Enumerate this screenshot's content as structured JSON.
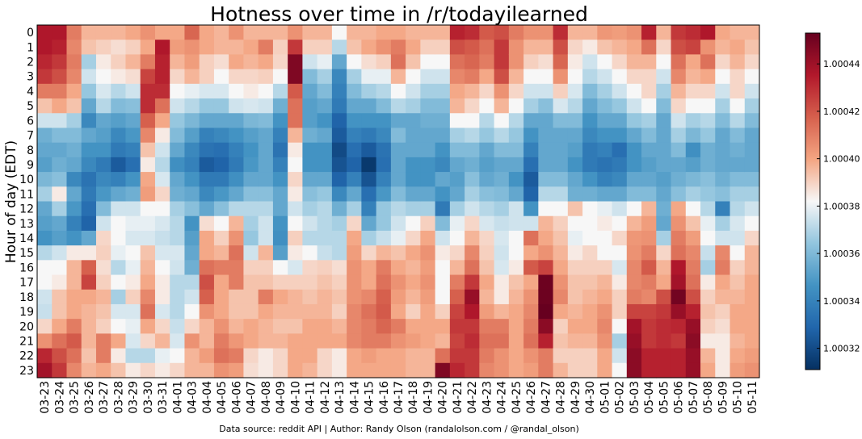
{
  "chart_data": {
    "type": "heatmap",
    "title": "Hotness over time in /r/todayilearned",
    "ylabel": "Hour of day (EDT)",
    "xlabel": "",
    "source_note": "Data source: reddit API | Author: Randy Olson (randalolson.com / @randal_olson)",
    "x_categories": [
      "03-23",
      "03-24",
      "03-25",
      "03-26",
      "03-27",
      "03-28",
      "03-29",
      "03-30",
      "03-31",
      "04-01",
      "04-03",
      "04-04",
      "04-05",
      "04-06",
      "04-07",
      "04-08",
      "04-09",
      "04-10",
      "04-11",
      "04-12",
      "04-13",
      "04-14",
      "04-15",
      "04-16",
      "04-17",
      "04-18",
      "04-19",
      "04-20",
      "04-21",
      "04-22",
      "04-23",
      "04-24",
      "04-25",
      "04-26",
      "04-27",
      "04-28",
      "04-29",
      "04-30",
      "05-01",
      "05-02",
      "05-03",
      "05-04",
      "05-05",
      "05-06",
      "05-07",
      "05-08",
      "05-09",
      "05-10",
      "05-11"
    ],
    "y_categories": [
      "0",
      "1",
      "2",
      "3",
      "4",
      "5",
      "6",
      "7",
      "8",
      "9",
      "10",
      "11",
      "12",
      "13",
      "14",
      "15",
      "16",
      "17",
      "18",
      "19",
      "20",
      "21",
      "22",
      "23"
    ],
    "colorbar": {
      "vmin": 1.000311,
      "vmax": 1.000453,
      "cmap": "RdBu_r",
      "ticks": [
        "1.00032",
        "1.00034",
        "1.00036",
        "1.00038",
        "1.00040",
        "1.00042",
        "1.00044"
      ]
    },
    "colors": {
      "low": "#053061",
      "mid": "#f7f7f7",
      "high": "#67001f"
    },
    "values_norm_note": "each column lists 24 hourly values (hours 0-23), expressed as fractions between colorbar vmin (0) and vmax (1)",
    "columns": [
      [
        0.88,
        0.88,
        0.85,
        0.82,
        0.7,
        0.58,
        0.45,
        0.32,
        0.3,
        0.28,
        0.34,
        0.4,
        0.3,
        0.28,
        0.25,
        0.42,
        0.5,
        0.5,
        0.45,
        0.44,
        0.55,
        0.66,
        0.85,
        0.9
      ],
      [
        0.88,
        0.86,
        0.82,
        0.78,
        0.7,
        0.62,
        0.45,
        0.35,
        0.3,
        0.32,
        0.36,
        0.52,
        0.4,
        0.3,
        0.28,
        0.45,
        0.5,
        0.52,
        0.58,
        0.58,
        0.62,
        0.72,
        0.78,
        0.82
      ],
      [
        0.7,
        0.68,
        0.7,
        0.68,
        0.62,
        0.58,
        0.4,
        0.35,
        0.32,
        0.3,
        0.22,
        0.3,
        0.26,
        0.2,
        0.25,
        0.52,
        0.6,
        0.6,
        0.62,
        0.62,
        0.7,
        0.76,
        0.72,
        0.68
      ],
      [
        0.6,
        0.58,
        0.4,
        0.45,
        0.38,
        0.3,
        0.22,
        0.3,
        0.25,
        0.22,
        0.16,
        0.18,
        0.15,
        0.12,
        0.3,
        0.52,
        0.75,
        0.8,
        0.62,
        0.6,
        0.6,
        0.6,
        0.58,
        0.6
      ],
      [
        0.6,
        0.56,
        0.52,
        0.5,
        0.46,
        0.42,
        0.3,
        0.28,
        0.25,
        0.18,
        0.22,
        0.26,
        0.35,
        0.45,
        0.55,
        0.56,
        0.54,
        0.56,
        0.6,
        0.58,
        0.56,
        0.7,
        0.7,
        0.62
      ],
      [
        0.6,
        0.54,
        0.56,
        0.52,
        0.42,
        0.35,
        0.28,
        0.22,
        0.18,
        0.1,
        0.2,
        0.3,
        0.45,
        0.5,
        0.5,
        0.48,
        0.42,
        0.5,
        0.4,
        0.46,
        0.5,
        0.62,
        0.52,
        0.58
      ],
      [
        0.62,
        0.56,
        0.6,
        0.54,
        0.45,
        0.36,
        0.3,
        0.26,
        0.2,
        0.15,
        0.25,
        0.32,
        0.45,
        0.48,
        0.46,
        0.5,
        0.48,
        0.52,
        0.56,
        0.46,
        0.48,
        0.46,
        0.42,
        0.52
      ],
      [
        0.66,
        0.62,
        0.7,
        0.8,
        0.84,
        0.84,
        0.75,
        0.68,
        0.58,
        0.52,
        0.62,
        0.64,
        0.5,
        0.48,
        0.46,
        0.58,
        0.6,
        0.62,
        0.68,
        0.72,
        0.62,
        0.55,
        0.42,
        0.55
      ],
      [
        0.62,
        0.88,
        0.86,
        0.86,
        0.84,
        0.72,
        0.62,
        0.52,
        0.45,
        0.42,
        0.46,
        0.55,
        0.5,
        0.46,
        0.44,
        0.46,
        0.5,
        0.52,
        0.52,
        0.46,
        0.55,
        0.6,
        0.48,
        0.52
      ],
      [
        0.62,
        0.64,
        0.6,
        0.55,
        0.5,
        0.45,
        0.38,
        0.35,
        0.3,
        0.24,
        0.3,
        0.32,
        0.4,
        0.42,
        0.42,
        0.46,
        0.45,
        0.42,
        0.42,
        0.42,
        0.44,
        0.46,
        0.5,
        0.55
      ],
      [
        0.74,
        0.66,
        0.64,
        0.6,
        0.48,
        0.42,
        0.34,
        0.28,
        0.22,
        0.2,
        0.25,
        0.3,
        0.36,
        0.25,
        0.28,
        0.3,
        0.32,
        0.42,
        0.45,
        0.5,
        0.55,
        0.66,
        0.6,
        0.6
      ],
      [
        0.62,
        0.62,
        0.56,
        0.56,
        0.46,
        0.38,
        0.3,
        0.2,
        0.16,
        0.1,
        0.18,
        0.22,
        0.3,
        0.54,
        0.62,
        0.62,
        0.72,
        0.78,
        0.75,
        0.66,
        0.6,
        0.6,
        0.64,
        0.6
      ],
      [
        0.6,
        0.6,
        0.54,
        0.5,
        0.46,
        0.38,
        0.3,
        0.22,
        0.15,
        0.12,
        0.18,
        0.26,
        0.36,
        0.5,
        0.56,
        0.6,
        0.7,
        0.62,
        0.62,
        0.62,
        0.66,
        0.7,
        0.72,
        0.66
      ],
      [
        0.66,
        0.6,
        0.62,
        0.55,
        0.5,
        0.45,
        0.3,
        0.25,
        0.2,
        0.18,
        0.24,
        0.3,
        0.42,
        0.6,
        0.66,
        0.72,
        0.7,
        0.7,
        0.58,
        0.58,
        0.6,
        0.65,
        0.7,
        0.64
      ],
      [
        0.6,
        0.62,
        0.6,
        0.55,
        0.52,
        0.46,
        0.34,
        0.28,
        0.25,
        0.26,
        0.3,
        0.36,
        0.42,
        0.4,
        0.38,
        0.45,
        0.56,
        0.58,
        0.58,
        0.58,
        0.62,
        0.62,
        0.55,
        0.54
      ],
      [
        0.6,
        0.7,
        0.62,
        0.56,
        0.5,
        0.45,
        0.35,
        0.3,
        0.3,
        0.3,
        0.3,
        0.36,
        0.42,
        0.45,
        0.45,
        0.6,
        0.56,
        0.58,
        0.7,
        0.62,
        0.6,
        0.6,
        0.52,
        0.52
      ],
      [
        0.6,
        0.56,
        0.55,
        0.5,
        0.42,
        0.32,
        0.25,
        0.2,
        0.16,
        0.2,
        0.25,
        0.3,
        0.3,
        0.25,
        0.24,
        0.28,
        0.5,
        0.56,
        0.62,
        0.6,
        0.58,
        0.6,
        0.55,
        0.55
      ],
      [
        0.66,
        0.82,
        0.96,
        0.96,
        0.76,
        0.72,
        0.72,
        0.6,
        0.52,
        0.5,
        0.55,
        0.52,
        0.45,
        0.5,
        0.56,
        0.52,
        0.46,
        0.56,
        0.6,
        0.6,
        0.58,
        0.62,
        0.62,
        0.62
      ],
      [
        0.6,
        0.56,
        0.45,
        0.35,
        0.3,
        0.28,
        0.28,
        0.32,
        0.25,
        0.25,
        0.3,
        0.36,
        0.4,
        0.45,
        0.42,
        0.5,
        0.55,
        0.56,
        0.58,
        0.6,
        0.62,
        0.62,
        0.62,
        0.6
      ],
      [
        0.6,
        0.56,
        0.48,
        0.4,
        0.35,
        0.3,
        0.25,
        0.3,
        0.25,
        0.25,
        0.3,
        0.38,
        0.42,
        0.42,
        0.42,
        0.44,
        0.56,
        0.58,
        0.6,
        0.6,
        0.62,
        0.62,
        0.55,
        0.55
      ],
      [
        0.5,
        0.42,
        0.3,
        0.22,
        0.2,
        0.18,
        0.12,
        0.1,
        0.06,
        0.08,
        0.12,
        0.22,
        0.32,
        0.4,
        0.42,
        0.42,
        0.54,
        0.56,
        0.58,
        0.56,
        0.6,
        0.62,
        0.52,
        0.52
      ],
      [
        0.6,
        0.58,
        0.5,
        0.4,
        0.35,
        0.3,
        0.25,
        0.2,
        0.15,
        0.12,
        0.2,
        0.3,
        0.4,
        0.55,
        0.62,
        0.64,
        0.66,
        0.66,
        0.66,
        0.68,
        0.68,
        0.68,
        0.62,
        0.62
      ],
      [
        0.6,
        0.62,
        0.54,
        0.48,
        0.4,
        0.3,
        0.25,
        0.18,
        0.1,
        0.02,
        0.08,
        0.15,
        0.2,
        0.3,
        0.4,
        0.55,
        0.62,
        0.62,
        0.68,
        0.72,
        0.7,
        0.7,
        0.64,
        0.62
      ],
      [
        0.62,
        0.66,
        0.56,
        0.48,
        0.42,
        0.35,
        0.25,
        0.22,
        0.16,
        0.15,
        0.2,
        0.26,
        0.38,
        0.38,
        0.44,
        0.6,
        0.7,
        0.72,
        0.75,
        0.76,
        0.74,
        0.7,
        0.62,
        0.62
      ],
      [
        0.62,
        0.7,
        0.72,
        0.6,
        0.5,
        0.42,
        0.3,
        0.35,
        0.3,
        0.3,
        0.3,
        0.35,
        0.42,
        0.45,
        0.48,
        0.58,
        0.62,
        0.66,
        0.64,
        0.62,
        0.7,
        0.66,
        0.62,
        0.62
      ],
      [
        0.6,
        0.62,
        0.58,
        0.5,
        0.45,
        0.4,
        0.3,
        0.3,
        0.3,
        0.25,
        0.25,
        0.3,
        0.4,
        0.5,
        0.55,
        0.62,
        0.6,
        0.62,
        0.6,
        0.56,
        0.62,
        0.64,
        0.6,
        0.6
      ],
      [
        0.6,
        0.56,
        0.5,
        0.45,
        0.4,
        0.35,
        0.32,
        0.3,
        0.3,
        0.25,
        0.25,
        0.3,
        0.4,
        0.56,
        0.62,
        0.66,
        0.64,
        0.66,
        0.64,
        0.62,
        0.62,
        0.62,
        0.6,
        0.6
      ],
      [
        0.6,
        0.56,
        0.5,
        0.45,
        0.4,
        0.35,
        0.32,
        0.3,
        0.25,
        0.22,
        0.3,
        0.25,
        0.18,
        0.35,
        0.45,
        0.52,
        0.5,
        0.5,
        0.5,
        0.56,
        0.62,
        0.6,
        0.72,
        0.96
      ],
      [
        0.86,
        0.78,
        0.72,
        0.68,
        0.62,
        0.6,
        0.5,
        0.4,
        0.35,
        0.3,
        0.28,
        0.3,
        0.4,
        0.48,
        0.5,
        0.55,
        0.6,
        0.7,
        0.75,
        0.8,
        0.82,
        0.8,
        0.82,
        0.85
      ],
      [
        0.84,
        0.76,
        0.74,
        0.7,
        0.6,
        0.55,
        0.5,
        0.42,
        0.35,
        0.32,
        0.36,
        0.4,
        0.45,
        0.55,
        0.6,
        0.68,
        0.72,
        0.82,
        0.92,
        0.88,
        0.82,
        0.84,
        0.82,
        0.82
      ],
      [
        0.76,
        0.72,
        0.7,
        0.62,
        0.55,
        0.5,
        0.42,
        0.38,
        0.3,
        0.28,
        0.3,
        0.36,
        0.42,
        0.46,
        0.55,
        0.56,
        0.58,
        0.62,
        0.6,
        0.64,
        0.7,
        0.72,
        0.7,
        0.68
      ],
      [
        0.78,
        0.82,
        0.82,
        0.78,
        0.66,
        0.6,
        0.5,
        0.42,
        0.35,
        0.3,
        0.32,
        0.35,
        0.4,
        0.44,
        0.46,
        0.45,
        0.46,
        0.52,
        0.52,
        0.6,
        0.7,
        0.72,
        0.66,
        0.66
      ],
      [
        0.7,
        0.66,
        0.66,
        0.6,
        0.55,
        0.5,
        0.42,
        0.38,
        0.35,
        0.3,
        0.25,
        0.3,
        0.45,
        0.45,
        0.5,
        0.5,
        0.52,
        0.58,
        0.6,
        0.62,
        0.62,
        0.62,
        0.62,
        0.62
      ],
      [
        0.66,
        0.6,
        0.56,
        0.5,
        0.45,
        0.4,
        0.3,
        0.25,
        0.2,
        0.15,
        0.1,
        0.12,
        0.25,
        0.45,
        0.72,
        0.62,
        0.76,
        0.62,
        0.66,
        0.68,
        0.7,
        0.72,
        0.66,
        0.64
      ],
      [
        0.66,
        0.6,
        0.54,
        0.5,
        0.45,
        0.36,
        0.3,
        0.3,
        0.3,
        0.3,
        0.35,
        0.42,
        0.5,
        0.6,
        0.62,
        0.66,
        0.8,
        0.99,
        0.99,
        1.0,
        0.94,
        0.86,
        0.7,
        0.7
      ],
      [
        0.84,
        0.78,
        0.74,
        0.66,
        0.56,
        0.46,
        0.35,
        0.3,
        0.3,
        0.3,
        0.35,
        0.42,
        0.5,
        0.56,
        0.58,
        0.6,
        0.62,
        0.66,
        0.68,
        0.62,
        0.56,
        0.58,
        0.56,
        0.6
      ],
      [
        0.6,
        0.55,
        0.52,
        0.5,
        0.46,
        0.42,
        0.35,
        0.3,
        0.28,
        0.25,
        0.3,
        0.32,
        0.58,
        0.5,
        0.48,
        0.52,
        0.56,
        0.58,
        0.58,
        0.6,
        0.62,
        0.6,
        0.56,
        0.56
      ],
      [
        0.6,
        0.52,
        0.45,
        0.42,
        0.35,
        0.3,
        0.25,
        0.22,
        0.18,
        0.18,
        0.25,
        0.32,
        0.5,
        0.5,
        0.5,
        0.55,
        0.56,
        0.58,
        0.6,
        0.62,
        0.62,
        0.6,
        0.56,
        0.56
      ],
      [
        0.65,
        0.58,
        0.5,
        0.45,
        0.4,
        0.35,
        0.3,
        0.25,
        0.2,
        0.16,
        0.2,
        0.3,
        0.48,
        0.52,
        0.5,
        0.5,
        0.56,
        0.6,
        0.62,
        0.66,
        0.68,
        0.66,
        0.62,
        0.62
      ],
      [
        0.64,
        0.6,
        0.55,
        0.5,
        0.45,
        0.38,
        0.3,
        0.25,
        0.15,
        0.18,
        0.22,
        0.3,
        0.45,
        0.5,
        0.55,
        0.5,
        0.46,
        0.52,
        0.56,
        0.56,
        0.5,
        0.4,
        0.45,
        0.5
      ],
      [
        0.66,
        0.62,
        0.6,
        0.55,
        0.5,
        0.45,
        0.38,
        0.3,
        0.25,
        0.25,
        0.3,
        0.35,
        0.5,
        0.6,
        0.65,
        0.66,
        0.68,
        0.68,
        0.7,
        0.8,
        0.9,
        0.92,
        0.94,
        0.94
      ],
      [
        0.86,
        0.72,
        0.6,
        0.55,
        0.55,
        0.5,
        0.4,
        0.35,
        0.3,
        0.28,
        0.3,
        0.35,
        0.6,
        0.64,
        0.66,
        0.7,
        0.76,
        0.7,
        0.68,
        0.8,
        0.82,
        0.82,
        0.86,
        0.86
      ],
      [
        0.6,
        0.55,
        0.5,
        0.45,
        0.4,
        0.35,
        0.3,
        0.3,
        0.3,
        0.3,
        0.28,
        0.3,
        0.32,
        0.3,
        0.4,
        0.55,
        0.6,
        0.62,
        0.78,
        0.82,
        0.84,
        0.84,
        0.86,
        0.86
      ],
      [
        0.82,
        0.78,
        0.72,
        0.68,
        0.6,
        0.55,
        0.45,
        0.4,
        0.35,
        0.3,
        0.32,
        0.36,
        0.62,
        0.66,
        0.7,
        0.72,
        0.88,
        0.9,
        0.98,
        0.92,
        0.85,
        0.82,
        0.86,
        0.86
      ],
      [
        0.84,
        0.8,
        0.62,
        0.6,
        0.55,
        0.5,
        0.4,
        0.34,
        0.24,
        0.28,
        0.34,
        0.4,
        0.5,
        0.58,
        0.64,
        0.68,
        0.7,
        0.72,
        0.78,
        0.86,
        0.92,
        0.94,
        0.92,
        0.92
      ],
      [
        0.88,
        0.66,
        0.72,
        0.62,
        0.55,
        0.5,
        0.42,
        0.38,
        0.32,
        0.32,
        0.36,
        0.38,
        0.42,
        0.48,
        0.5,
        0.44,
        0.4,
        0.52,
        0.56,
        0.58,
        0.56,
        0.52,
        0.6,
        0.62
      ],
      [
        0.62,
        0.6,
        0.55,
        0.5,
        0.45,
        0.4,
        0.35,
        0.3,
        0.3,
        0.3,
        0.32,
        0.36,
        0.2,
        0.4,
        0.45,
        0.68,
        0.7,
        0.62,
        0.6,
        0.56,
        0.54,
        0.52,
        0.52,
        0.52
      ],
      [
        0.6,
        0.62,
        0.6,
        0.55,
        0.55,
        0.5,
        0.42,
        0.35,
        0.32,
        0.3,
        0.35,
        0.4,
        0.42,
        0.46,
        0.45,
        0.5,
        0.56,
        0.58,
        0.6,
        0.62,
        0.62,
        0.6,
        0.62,
        0.64
      ],
      [
        0.6,
        0.58,
        0.55,
        0.5,
        0.45,
        0.4,
        0.35,
        0.3,
        0.3,
        0.3,
        0.35,
        0.4,
        0.45,
        0.5,
        0.55,
        0.6,
        0.6,
        0.62,
        0.62,
        0.62,
        0.62,
        0.62,
        0.64,
        0.66
      ]
    ]
  }
}
